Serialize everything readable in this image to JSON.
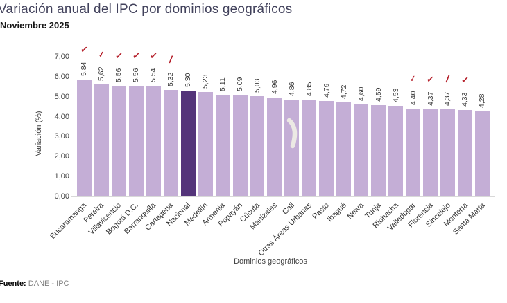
{
  "header": {
    "title": "Variación anual del IPC por dominios geográficos",
    "subtitle": "Noviembre 2025"
  },
  "source": {
    "label": "Fuente:",
    "value": "DANE - IPC"
  },
  "chart_data": {
    "type": "bar",
    "title": "Variación anual del IPC por dominios geográficos",
    "subtitle": "Noviembre 2025",
    "xlabel": "Dominios geográficos",
    "ylabel": "Variación (%)",
    "ylim": [
      0,
      7
    ],
    "ytick_labels": [
      "0,00",
      "1,00",
      "2,00",
      "3,00",
      "4,00",
      "5,00",
      "6,00",
      "7,00"
    ],
    "grid": false,
    "legend": "none",
    "categories": [
      "Bucaramanga",
      "Pereira",
      "Villavicencio",
      "Bogotá D.C.",
      "Barranquilla",
      "Cartagena",
      "Nacional",
      "Medellín",
      "Armenia",
      "Popayán",
      "Cúcuta",
      "Manizales",
      "Cali",
      "Otras Áreas Urbanas",
      "Pasto",
      "Ibagué",
      "Neiva",
      "Tunja",
      "Riohacha",
      "Valledupar",
      "Florencia",
      "Sincelejo",
      "Montería",
      "Santa Marta"
    ],
    "values": [
      5.84,
      5.62,
      5.56,
      5.56,
      5.54,
      5.32,
      5.3,
      5.23,
      5.11,
      5.09,
      5.03,
      4.96,
      4.86,
      4.85,
      4.79,
      4.72,
      4.6,
      4.59,
      4.53,
      4.4,
      4.37,
      4.37,
      4.33,
      4.28
    ],
    "value_labels": [
      "5,84",
      "5,62",
      "5,56",
      "5,56",
      "5,54",
      "5,32",
      "5,30",
      "5,23",
      "5,11",
      "5,09",
      "5,03",
      "4,96",
      "4,86",
      "4,85",
      "4,79",
      "4,72",
      "4,60",
      "4,59",
      "4,53",
      "4,40",
      "4,37",
      "4,37",
      "4,33",
      "4,28"
    ],
    "highlight_category": "Nacional",
    "highlight_index": 6,
    "colors": {
      "bar": "#c4aed6",
      "highlight_bar": "#54347a",
      "red_mark": "#b5202b",
      "swoosh": "#ece9e4"
    },
    "annotations": {
      "red_marks": [
        {
          "index": 0,
          "variant": "check"
        },
        {
          "index": 1,
          "variant": "hook"
        },
        {
          "index": 2,
          "variant": "check"
        },
        {
          "index": 3,
          "variant": "check"
        },
        {
          "index": 4,
          "variant": "check"
        },
        {
          "index": 5,
          "variant": "slash"
        },
        {
          "index": 19,
          "variant": "hook"
        },
        {
          "index": 20,
          "variant": "check"
        },
        {
          "index": 21,
          "variant": "slash"
        },
        {
          "index": 22,
          "variant": "check"
        }
      ],
      "mark_glyphs": {
        "check": "✓",
        "hook": "✓",
        "slash": "/"
      },
      "white_swoosh_index": 12
    }
  }
}
